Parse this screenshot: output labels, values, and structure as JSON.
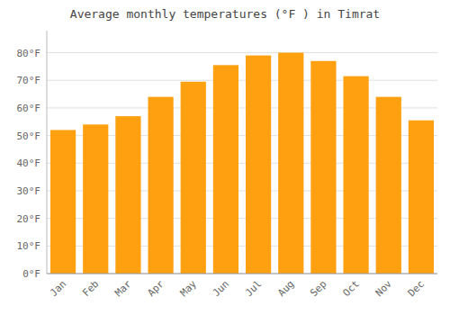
{
  "chart_data": {
    "type": "bar",
    "title": "Average monthly temperatures (°F ) in Timrat",
    "categories": [
      "Jan",
      "Feb",
      "Mar",
      "Apr",
      "May",
      "Jun",
      "Jul",
      "Aug",
      "Sep",
      "Oct",
      "Nov",
      "Dec"
    ],
    "values": [
      52,
      54,
      57,
      64,
      69.5,
      75.5,
      79,
      80,
      77,
      71.5,
      64,
      55.5
    ],
    "color": "#FFA010",
    "ylim": [
      0,
      88
    ],
    "yticks": [
      {
        "value": 0,
        "label": "0°F"
      },
      {
        "value": 10,
        "label": "10°F"
      },
      {
        "value": 20,
        "label": "20°F"
      },
      {
        "value": 30,
        "label": "30°F"
      },
      {
        "value": 40,
        "label": "40°F"
      },
      {
        "value": 50,
        "label": "50°F"
      },
      {
        "value": 60,
        "label": "60°F"
      },
      {
        "value": 70,
        "label": "70°F"
      },
      {
        "value": 80,
        "label": "80°F"
      }
    ],
    "grid": true
  }
}
